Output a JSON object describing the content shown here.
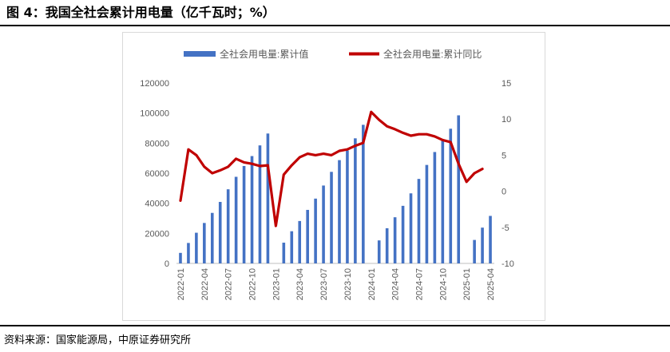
{
  "header": {
    "title": "图 4：我国全社会累计用电量（亿千瓦时；%）"
  },
  "footer": {
    "source": "资料来源：国家能源局，中原证券研究所"
  },
  "colors": {
    "bar": "#4472c4",
    "line": "#c00000",
    "axis_text": "#595959"
  },
  "chart_data": {
    "type": "bar+line",
    "title": "",
    "categories": [
      "2022-01",
      "2022-02",
      "2022-03",
      "2022-04",
      "2022-05",
      "2022-06",
      "2022-07",
      "2022-08",
      "2022-09",
      "2022-10",
      "2022-11",
      "2022-12",
      "2023-01",
      "2023-02",
      "2023-03",
      "2023-04",
      "2023-05",
      "2023-06",
      "2023-07",
      "2023-08",
      "2023-09",
      "2023-10",
      "2023-11",
      "2023-12",
      "2024-01",
      "2024-02",
      "2024-03",
      "2024-04",
      "2024-05",
      "2024-06",
      "2024-07",
      "2024-08",
      "2024-09",
      "2024-10",
      "2024-11",
      "2024-12",
      "2025-01",
      "2025-02",
      "2025-03",
      "2025-04"
    ],
    "x_tick_labels": [
      "2022-01",
      "2022-04",
      "2022-07",
      "2022-10",
      "2023-01",
      "2023-04",
      "2023-07",
      "2023-10",
      "2024-01",
      "2024-04",
      "2024-07",
      "2024-10",
      "2025-01",
      "2025-04"
    ],
    "series": [
      {
        "name": "全社会用电量:累计值",
        "type": "bar",
        "axis": "left",
        "values": [
          7000,
          13600,
          20400,
          26900,
          33600,
          40900,
          49300,
          57600,
          64800,
          71400,
          78500,
          86400,
          null,
          13800,
          21400,
          28200,
          35600,
          43100,
          51800,
          60900,
          68700,
          75100,
          83200,
          92200,
          null,
          15300,
          23400,
          30700,
          38300,
          46600,
          56200,
          65500,
          74100,
          81600,
          89600,
          98500,
          null,
          15600,
          23800,
          31600
        ]
      },
      {
        "name": "全社会用电量:累计同比",
        "type": "line",
        "axis": "right",
        "values": [
          -1.3,
          5.8,
          5.0,
          3.4,
          2.5,
          2.9,
          3.4,
          4.5,
          4.0,
          3.8,
          3.5,
          3.6,
          -4.8,
          2.3,
          3.6,
          4.7,
          5.2,
          5.0,
          5.2,
          5.0,
          5.6,
          5.8,
          6.3,
          6.7,
          11.0,
          9.9,
          9.0,
          8.6,
          8.1,
          7.7,
          7.9,
          7.9,
          7.6,
          7.1,
          6.8,
          3.8,
          1.3,
          2.5,
          3.1,
          null
        ]
      }
    ],
    "y_left": {
      "min": 0,
      "max": 120000,
      "ticks": [
        0,
        20000,
        40000,
        60000,
        80000,
        100000,
        120000
      ]
    },
    "y_right": {
      "min": -10,
      "max": 15,
      "ticks": [
        -10,
        -5,
        0,
        5,
        10,
        15
      ]
    },
    "legend_position": "top",
    "grid": false
  }
}
